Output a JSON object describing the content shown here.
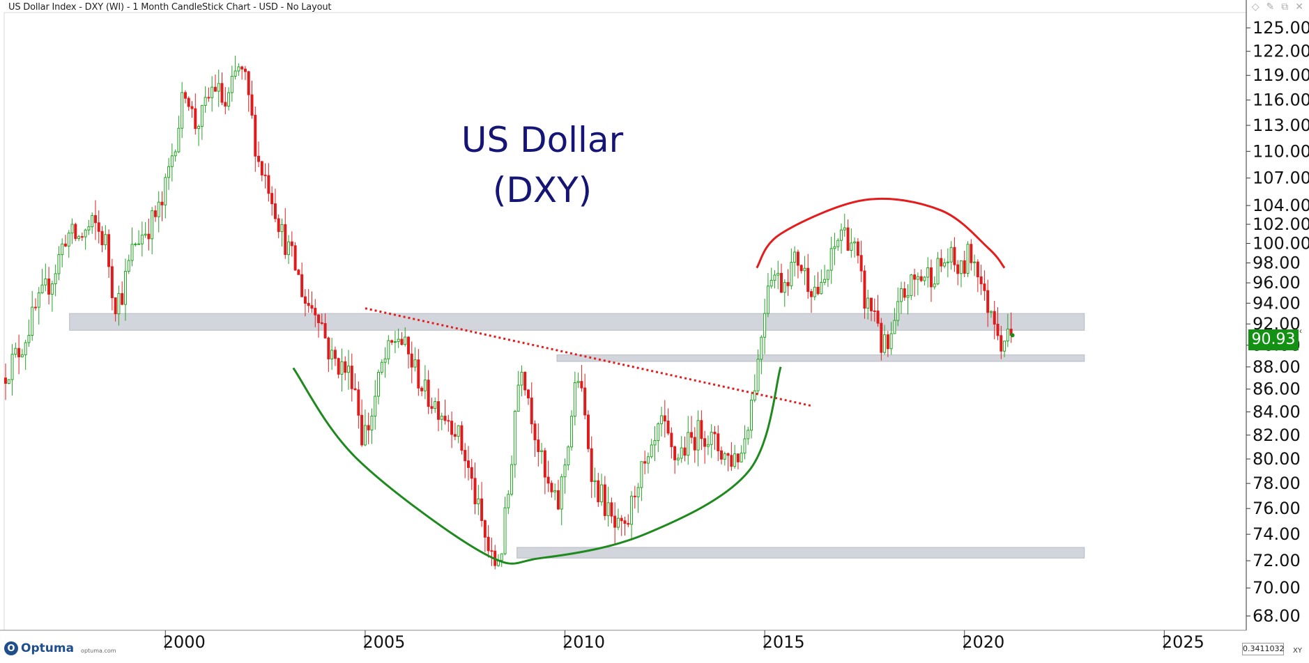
{
  "header": {
    "title": "US Dollar Index - DXY (WI) - 1 Month CandleStick Chart - USD - No Layout",
    "controls": [
      "◇",
      "✎",
      "⧉",
      "✕"
    ]
  },
  "footer": {
    "brand": "Optuma",
    "brand_url": "optuma.com",
    "zoom_value": "0.3411032",
    "xy_label": "XY"
  },
  "price_badge": "90.93",
  "colors": {
    "up": "#22a322",
    "down": "#e01b1b",
    "title": "#151575",
    "band": "#d3d5dc",
    "green_arc": "#1e8a1e",
    "red_arc": "#e51c1c",
    "badge": "#129112"
  },
  "chart_data": {
    "type": "candlestick",
    "title": "US Dollar\n(DXY)",
    "interval": "1 Month",
    "x_ticks": [
      2000,
      2005,
      2010,
      2015,
      2020,
      2025
    ],
    "xlim": [
      1996.0,
      2027.0
    ],
    "ylim": [
      67.0,
      127.0
    ],
    "y_scale": "log",
    "y_ticks": [
      68,
      70,
      72,
      74,
      76,
      78,
      80,
      82,
      84,
      86,
      88,
      90,
      92,
      94,
      96,
      98,
      100,
      102,
      104,
      107,
      110,
      113,
      116,
      119,
      122,
      125
    ],
    "y_tick_format": "0.00",
    "last_price": 90.93,
    "anchors": [
      [
        1996.0,
        87.0
      ],
      [
        1996.5,
        90.0
      ],
      [
        1996.8,
        93.0
      ],
      [
        1997.3,
        97.0
      ],
      [
        1997.6,
        101.0
      ],
      [
        1997.9,
        100.5
      ],
      [
        1998.3,
        102.0
      ],
      [
        1998.6,
        100.0
      ],
      [
        1998.8,
        94.0
      ],
      [
        1999.0,
        95.0
      ],
      [
        1999.3,
        100.0
      ],
      [
        1999.7,
        102.0
      ],
      [
        2000.0,
        104.0
      ],
      [
        2000.4,
        113.0
      ],
      [
        2000.6,
        118.0
      ],
      [
        2000.8,
        113.0
      ],
      [
        2001.0,
        114.0
      ],
      [
        2001.3,
        118.0
      ],
      [
        2001.6,
        115.0
      ],
      [
        2001.9,
        120.0
      ],
      [
        2002.1,
        118.0
      ],
      [
        2002.4,
        109.0
      ],
      [
        2002.7,
        106.0
      ],
      [
        2003.0,
        101.0
      ],
      [
        2003.3,
        98.0
      ],
      [
        2003.6,
        94.0
      ],
      [
        2003.9,
        93.5
      ],
      [
        2004.2,
        89.0
      ],
      [
        2004.5,
        88.0
      ],
      [
        2004.8,
        87.0
      ],
      [
        2005.0,
        82.0
      ],
      [
        2005.2,
        83.0
      ],
      [
        2005.5,
        88.0
      ],
      [
        2005.9,
        91.0
      ],
      [
        2006.3,
        88.0
      ],
      [
        2006.6,
        85.5
      ],
      [
        2006.9,
        84.5
      ],
      [
        2007.3,
        83.0
      ],
      [
        2007.6,
        80.0
      ],
      [
        2007.9,
        76.0
      ],
      [
        2008.1,
        73.5
      ],
      [
        2008.3,
        71.5
      ],
      [
        2008.5,
        73.0
      ],
      [
        2008.7,
        78.0
      ],
      [
        2008.85,
        85.0
      ],
      [
        2009.0,
        88.5
      ],
      [
        2009.3,
        83.0
      ],
      [
        2009.6,
        78.0
      ],
      [
        2009.9,
        76.0
      ],
      [
        2010.1,
        80.0
      ],
      [
        2010.4,
        87.5
      ],
      [
        2010.6,
        83.0
      ],
      [
        2010.8,
        78.0
      ],
      [
        2011.0,
        77.0
      ],
      [
        2011.3,
        74.5
      ],
      [
        2011.6,
        74.0
      ],
      [
        2011.9,
        78.5
      ],
      [
        2012.2,
        79.5
      ],
      [
        2012.5,
        83.0
      ],
      [
        2012.8,
        80.0
      ],
      [
        2013.1,
        81.0
      ],
      [
        2013.5,
        82.5
      ],
      [
        2013.9,
        81.0
      ],
      [
        2014.2,
        80.0
      ],
      [
        2014.5,
        80.5
      ],
      [
        2014.7,
        84.0
      ],
      [
        2014.9,
        88.0
      ],
      [
        2015.2,
        97.5
      ],
      [
        2015.5,
        96.0
      ],
      [
        2015.9,
        98.5
      ],
      [
        2016.2,
        96.0
      ],
      [
        2016.5,
        95.0
      ],
      [
        2016.8,
        99.0
      ],
      [
        2017.0,
        101.5
      ],
      [
        2017.3,
        100.0
      ],
      [
        2017.6,
        94.0
      ],
      [
        2017.9,
        93.0
      ],
      [
        2018.0,
        90.0
      ],
      [
        2018.2,
        89.5
      ],
      [
        2018.5,
        94.5
      ],
      [
        2018.9,
        96.5
      ],
      [
        2019.3,
        97.0
      ],
      [
        2019.7,
        98.5
      ],
      [
        2020.0,
        97.0
      ],
      [
        2020.2,
        99.0
      ],
      [
        2020.4,
        98.0
      ],
      [
        2020.6,
        94.0
      ],
      [
        2020.8,
        93.5
      ],
      [
        2021.0,
        90.5
      ],
      [
        2021.2,
        90.93
      ]
    ],
    "annotations": [
      {
        "type": "band",
        "x_range": [
          1997.6,
          2023.0
        ],
        "y_range": [
          91.4,
          93.0
        ]
      },
      {
        "type": "band",
        "x_range": [
          2009.8,
          2023.0
        ],
        "y_range": [
          88.5,
          89.1
        ]
      },
      {
        "type": "band",
        "x_range": [
          2008.8,
          2023.0
        ],
        "y_range": [
          72.2,
          73.0
        ]
      },
      {
        "type": "trendline",
        "style": "dashed",
        "color": "red",
        "points": [
          [
            2005.0,
            93.5
          ],
          [
            2016.2,
            84.5
          ]
        ]
      },
      {
        "type": "arc",
        "color": "green",
        "points": [
          [
            2003.2,
            87.9
          ],
          [
            2004.8,
            80.0
          ],
          [
            2008.0,
            72.5
          ],
          [
            2009.4,
            72.2
          ],
          [
            2012.0,
            74.0
          ],
          [
            2014.6,
            79.0
          ],
          [
            2015.4,
            88.0
          ]
        ]
      },
      {
        "type": "arc",
        "color": "red",
        "points": [
          [
            2014.8,
            97.5
          ],
          [
            2015.4,
            101.0
          ],
          [
            2017.5,
            104.6
          ],
          [
            2019.4,
            103.5
          ],
          [
            2020.6,
            99.5
          ],
          [
            2021.0,
            97.5
          ]
        ]
      }
    ]
  }
}
